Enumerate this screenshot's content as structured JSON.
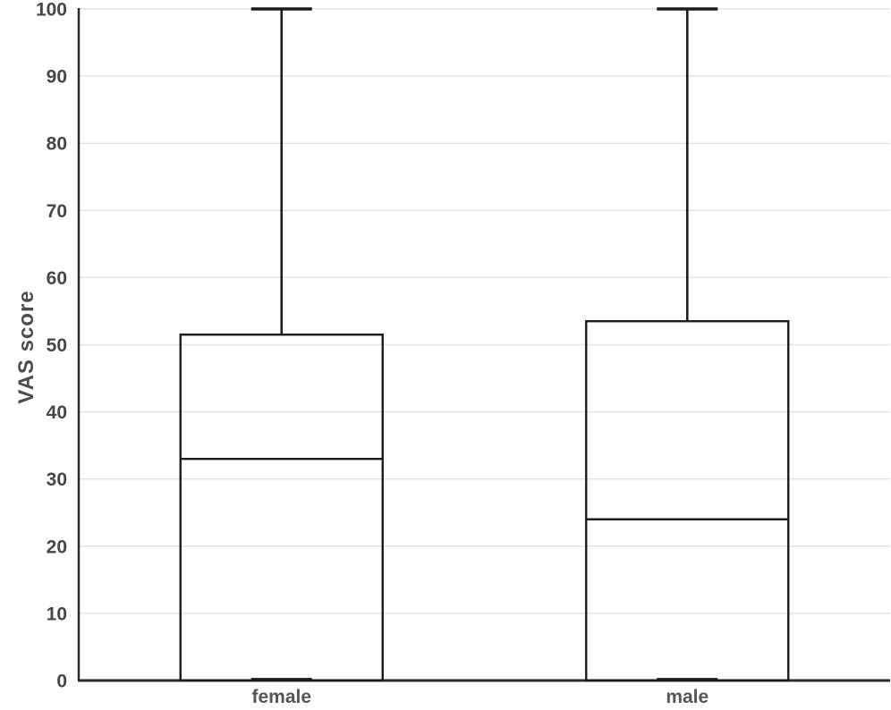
{
  "figure": {
    "background": "#ffffff"
  },
  "chart_data": {
    "type": "boxplot",
    "title": "",
    "xlabel": "",
    "ylabel": "VAS score",
    "ylim": [
      0,
      100
    ],
    "ytick_step": 10,
    "yticks": [
      0,
      10,
      20,
      30,
      40,
      50,
      60,
      70,
      80,
      90,
      100
    ],
    "grid": "horizontal gridlines only",
    "legend": "none",
    "categories": [
      "female",
      "male"
    ],
    "boxes": [
      {
        "name": "female",
        "min": 0,
        "q1": 0,
        "median": 33,
        "q3": 51.5,
        "max": 100
      },
      {
        "name": "male",
        "min": 0,
        "q1": 0,
        "median": 24,
        "q3": 53.5,
        "max": 100
      }
    ],
    "colors": {
      "grid": "#e3e3e3",
      "axis": "#2b2b2b",
      "box_stroke": "#1c1c1c",
      "box_fill": "#ffffff",
      "tick_label": "#474747",
      "axis_title": "#4d4d4d",
      "category_label": "#555555"
    }
  }
}
